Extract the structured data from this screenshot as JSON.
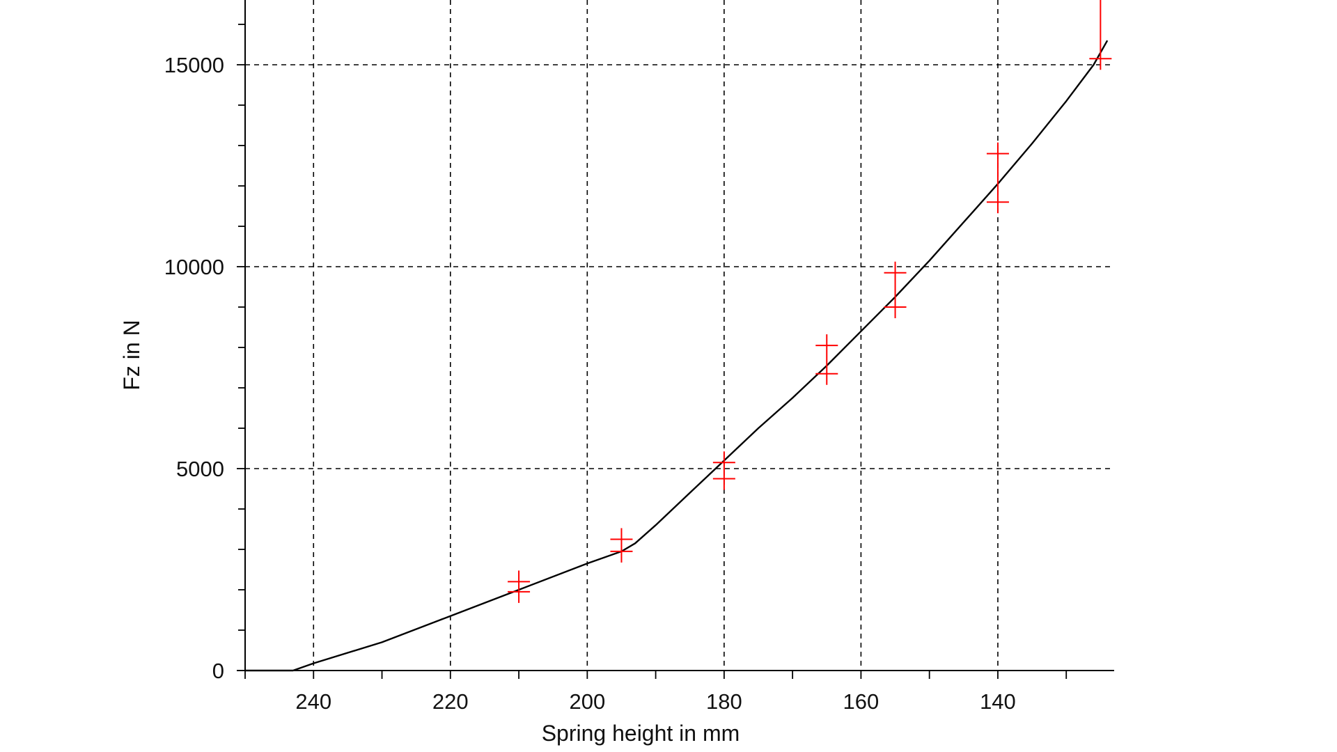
{
  "chart_data": {
    "type": "line",
    "title": "",
    "xlabel": "Spring height in mm",
    "ylabel": "Fz in N",
    "xlim": [
      250,
      123
    ],
    "ylim": [
      0,
      16500
    ],
    "x_reversed": true,
    "grid": true,
    "x_ticks": [
      240,
      220,
      200,
      180,
      160,
      140
    ],
    "x_tick_labels": [
      "240",
      "220",
      "200",
      "180",
      "160",
      "140"
    ],
    "x_minor_ticks": [
      250,
      230,
      210,
      190,
      170,
      150,
      130
    ],
    "y_ticks": [
      0,
      5000,
      10000,
      15000
    ],
    "y_tick_labels": [
      "0",
      "5000",
      "10000",
      "15000"
    ],
    "y_minor_step": 1000,
    "series": [
      {
        "kind": "line",
        "color": "#000000",
        "x": [
          250,
          243,
          240,
          230,
          220,
          210,
          200,
          195,
          193,
          190,
          185,
          180,
          175,
          170,
          165,
          160,
          155,
          150,
          145,
          140,
          135,
          130,
          126,
          124
        ],
        "y": [
          0,
          0,
          180,
          700,
          1350,
          2000,
          2650,
          2950,
          3150,
          3600,
          4400,
          5200,
          6000,
          6750,
          7550,
          8400,
          9250,
          10150,
          11100,
          12050,
          13050,
          14100,
          15000,
          15600
        ]
      },
      {
        "kind": "errorbar",
        "color": "#ff0000",
        "points": [
          {
            "x": 210,
            "low": 1950,
            "high": 2200
          },
          {
            "x": 195,
            "low": 2950,
            "high": 3250
          },
          {
            "x": 180,
            "low": 4750,
            "high": 5150
          },
          {
            "x": 165,
            "low": 7350,
            "high": 8050
          },
          {
            "x": 155,
            "low": 9000,
            "high": 9850
          },
          {
            "x": 140,
            "low": 11600,
            "high": 12800
          },
          {
            "x": 125,
            "low": 15150,
            "high": 16700
          }
        ]
      }
    ]
  }
}
